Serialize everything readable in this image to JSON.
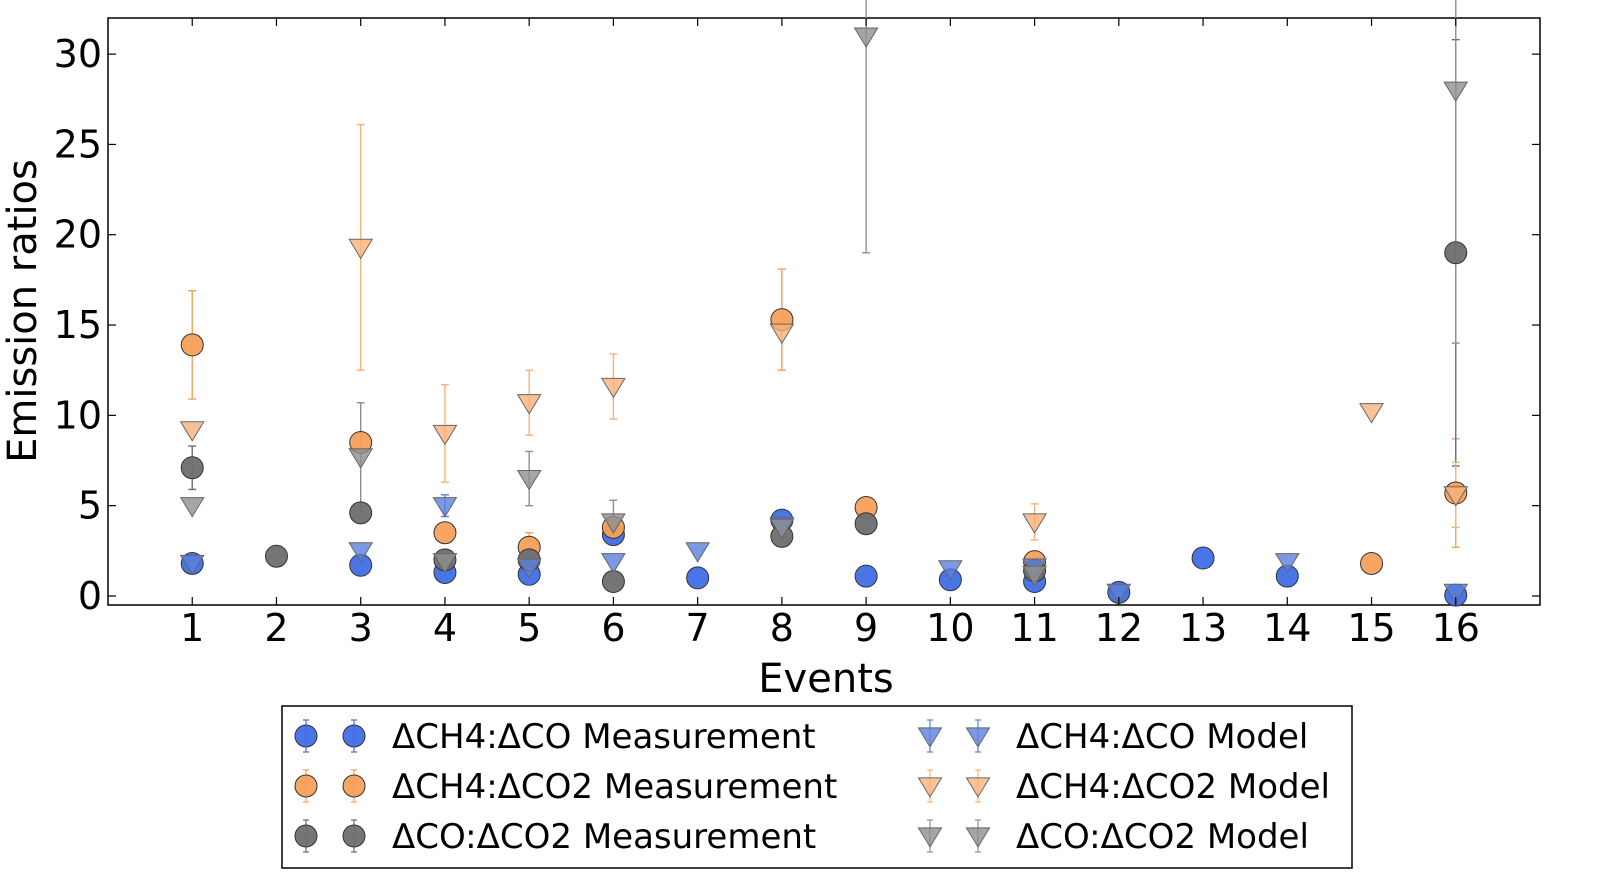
{
  "chart_data": {
    "type": "scatter",
    "title": "",
    "xlabel": "Events",
    "ylabel": "Emission ratios",
    "xlim": [
      0,
      17
    ],
    "ylim": [
      -0.5,
      32
    ],
    "xticks": [
      "1",
      "2",
      "3",
      "4",
      "5",
      "6",
      "7",
      "8",
      "9",
      "10",
      "11",
      "12",
      "13",
      "14",
      "15",
      "16"
    ],
    "yticks": [
      "0",
      "5",
      "10",
      "15",
      "20",
      "25",
      "30"
    ],
    "grid": false,
    "legend_position": "bottom-center",
    "series": [
      {
        "name": "ΔCH4:ΔCO Measurement",
        "marker": "circle",
        "color": "#3f6ee6",
        "points": [
          {
            "x": 1,
            "y": 1.8
          },
          {
            "x": 3,
            "y": 1.7
          },
          {
            "x": 4,
            "y": 1.3
          },
          {
            "x": 5,
            "y": 1.2
          },
          {
            "x": 6,
            "y": 3.4
          },
          {
            "x": 7,
            "y": 1.0
          },
          {
            "x": 8,
            "y": 4.2
          },
          {
            "x": 9,
            "y": 1.1
          },
          {
            "x": 10,
            "y": 0.9
          },
          {
            "x": 11,
            "y": 0.8
          },
          {
            "x": 12,
            "y": 0.2
          },
          {
            "x": 13,
            "y": 2.1
          },
          {
            "x": 14,
            "y": 1.1
          },
          {
            "x": 16,
            "y": 0.05
          }
        ]
      },
      {
        "name": "ΔCH4:ΔCO2 Measurement",
        "marker": "circle",
        "color": "#f5a05a",
        "points": [
          {
            "x": 1,
            "y": 13.9,
            "err": 3.0
          },
          {
            "x": 3,
            "y": 8.5
          },
          {
            "x": 4,
            "y": 3.5
          },
          {
            "x": 5,
            "y": 2.7,
            "err": 0.8
          },
          {
            "x": 6,
            "y": 3.8
          },
          {
            "x": 8,
            "y": 15.3,
            "err": 2.8
          },
          {
            "x": 9,
            "y": 4.9
          },
          {
            "x": 11,
            "y": 1.9
          },
          {
            "x": 15,
            "y": 1.8
          },
          {
            "x": 16,
            "y": 5.7,
            "err": 3.0
          }
        ]
      },
      {
        "name": "ΔCO:ΔCO2 Measurement",
        "marker": "circle",
        "color": "#6e6e6e",
        "points": [
          {
            "x": 1,
            "y": 7.1,
            "err": 1.2
          },
          {
            "x": 2,
            "y": 2.2
          },
          {
            "x": 3,
            "y": 4.6
          },
          {
            "x": 4,
            "y": 2.0
          },
          {
            "x": 5,
            "y": 2.0
          },
          {
            "x": 6,
            "y": 0.8
          },
          {
            "x": 8,
            "y": 3.3
          },
          {
            "x": 9,
            "y": 4.0
          },
          {
            "x": 11,
            "y": 1.4
          },
          {
            "x": 16,
            "y": 19.0,
            "err": 11.8
          }
        ]
      },
      {
        "name": "ΔCH4:ΔCO Model",
        "marker": "triangle-down",
        "color": "#5b7fdc",
        "points": [
          {
            "x": 1,
            "y": 1.8
          },
          {
            "x": 3,
            "y": 2.5
          },
          {
            "x": 4,
            "y": 5.0,
            "err": 0.6
          },
          {
            "x": 5,
            "y": 1.6
          },
          {
            "x": 6,
            "y": 1.9
          },
          {
            "x": 7,
            "y": 2.5
          },
          {
            "x": 8,
            "y": 3.9
          },
          {
            "x": 10,
            "y": 1.5
          },
          {
            "x": 11,
            "y": 1.6
          },
          {
            "x": 12,
            "y": 0.2
          },
          {
            "x": 14,
            "y": 1.9
          },
          {
            "x": 16,
            "y": 0.2
          }
        ]
      },
      {
        "name": "ΔCH4:ΔCO2 Model",
        "marker": "triangle-down",
        "color": "#f8b27a",
        "points": [
          {
            "x": 1,
            "y": 9.2
          },
          {
            "x": 3,
            "y": 19.3,
            "err": 6.8
          },
          {
            "x": 4,
            "y": 9.0,
            "err": 2.7
          },
          {
            "x": 5,
            "y": 10.7,
            "err": 1.8
          },
          {
            "x": 6,
            "y": 11.6,
            "err": 1.8
          },
          {
            "x": 8,
            "y": 14.6
          },
          {
            "x": 11,
            "y": 4.1,
            "err": 1.0
          },
          {
            "x": 15,
            "y": 10.2
          },
          {
            "x": 16,
            "y": 5.6,
            "err": 1.8
          }
        ]
      },
      {
        "name": "ΔCO:ΔCO2 Model",
        "marker": "triangle-down",
        "color": "#8f8f8f",
        "points": [
          {
            "x": 1,
            "y": 5.0
          },
          {
            "x": 3,
            "y": 7.7,
            "err": 3.0
          },
          {
            "x": 4,
            "y": 1.9
          },
          {
            "x": 5,
            "y": 6.5,
            "err": 1.5
          },
          {
            "x": 6,
            "y": 4.1,
            "err": 1.2
          },
          {
            "x": 8,
            "y": 3.8
          },
          {
            "x": 9,
            "y": 31.0,
            "err": 12.0
          },
          {
            "x": 11,
            "y": 1.2
          },
          {
            "x": 16,
            "y": 28.0,
            "err": 14.0
          }
        ]
      }
    ]
  }
}
